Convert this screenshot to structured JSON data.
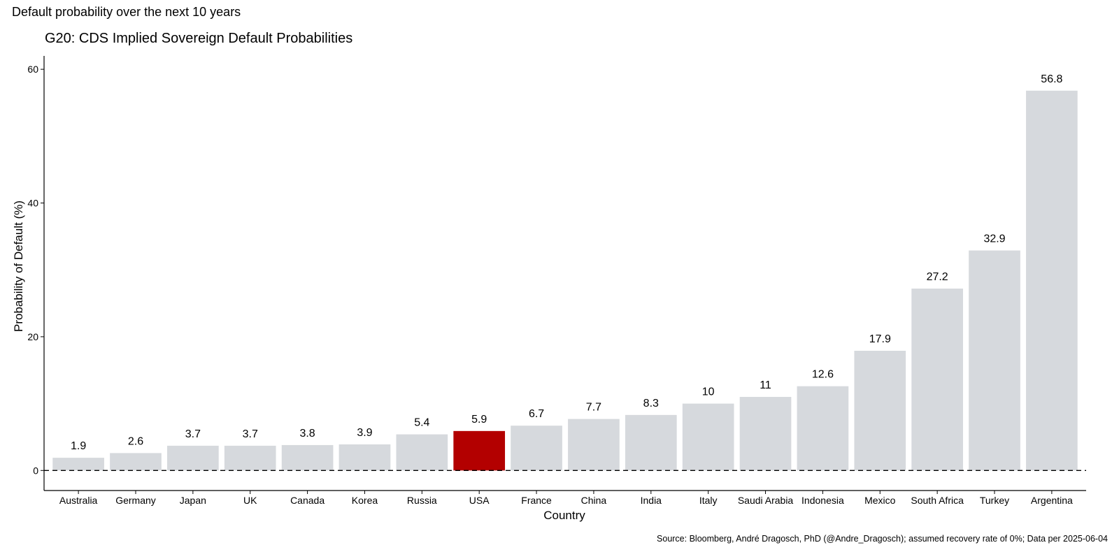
{
  "chart_data": {
    "type": "bar",
    "subtitle": "Default probability over the next 10 years",
    "title": "G20: CDS Implied Sovereign Default Probabilities",
    "xlabel": "Country",
    "ylabel": "Probability of Default (%)",
    "ylim": [
      -3,
      62
    ],
    "yticks": [
      0,
      20,
      40,
      60
    ],
    "grid": false,
    "reference_line": {
      "y": 0,
      "style": "dashed"
    },
    "categories": [
      "Australia",
      "Germany",
      "Japan",
      "UK",
      "Canada",
      "Korea",
      "Russia",
      "USA",
      "France",
      "China",
      "India",
      "Italy",
      "Saudi Arabia",
      "Indonesia",
      "Mexico",
      "South Africa",
      "Turkey",
      "Argentina"
    ],
    "values": [
      1.9,
      2.6,
      3.7,
      3.7,
      3.8,
      3.9,
      5.4,
      5.9,
      6.7,
      7.7,
      8.3,
      10,
      11,
      12.6,
      17.9,
      27.2,
      32.9,
      56.8
    ],
    "data_labels": [
      "1.9",
      "2.6",
      "3.7",
      "3.7",
      "3.8",
      "3.9",
      "5.4",
      "5.9",
      "6.7",
      "7.7",
      "8.3",
      "10",
      "11",
      "12.6",
      "17.9",
      "27.2",
      "32.9",
      "56.8"
    ],
    "highlight": "USA",
    "colors": {
      "default": "#d6d9dd",
      "highlight": "#b30000"
    },
    "caption": "Source: Bloomberg, André Dragosch, PhD (@Andre_Dragosch); assumed recovery rate of 0%; Data per 2025-06-04"
  }
}
